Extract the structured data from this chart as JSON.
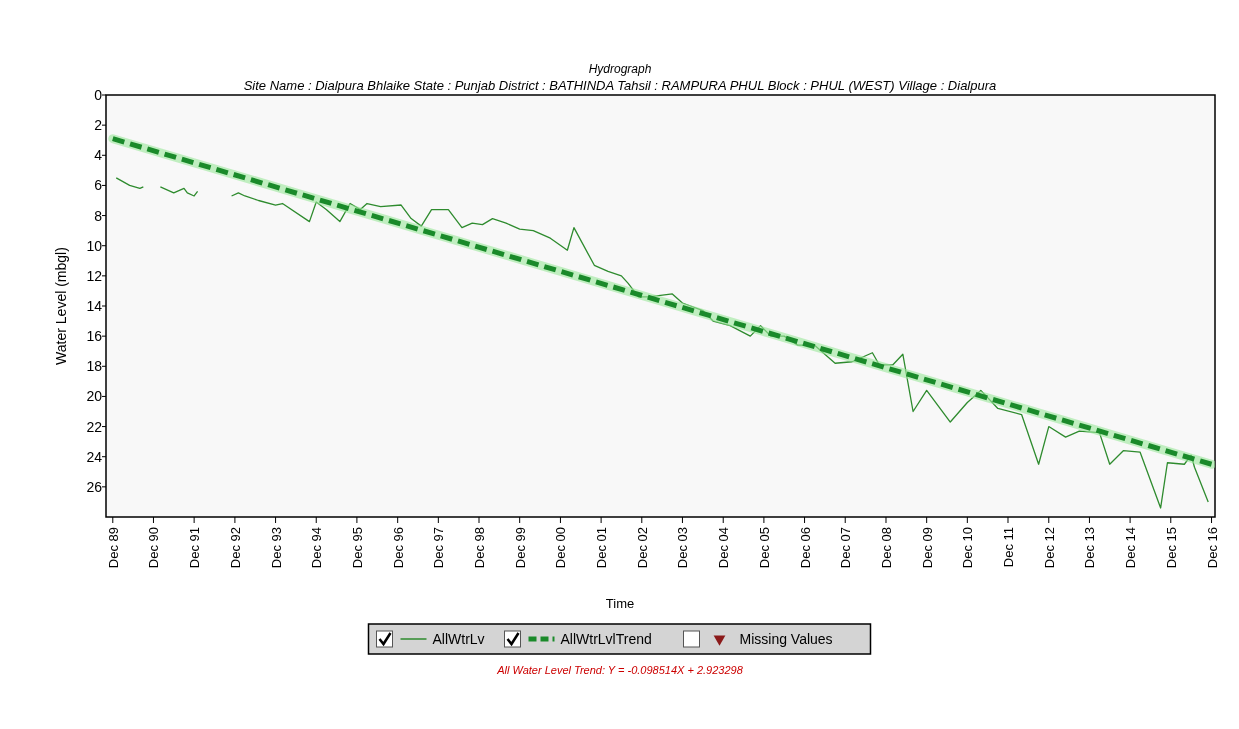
{
  "chart_data": {
    "type": "line",
    "title": "Hydrograph",
    "subtitle": "Site Name : Dialpura Bhlaike  State : Punjab District : BATHINDA  Tahsil : RAMPURA PHUL  Block : PHUL (WEST)  Village : Dialpura",
    "xlabel": "Time",
    "ylabel": "Water Level (mbgl)",
    "annotations": [
      "All Water Level Trend: Y = -0.098514X + 2.923298"
    ],
    "xlim": [
      "1989-10",
      "2017-01"
    ],
    "xticks": [
      {
        "value": "1989-12",
        "label": "Dec 89"
      },
      {
        "value": "1990-12",
        "label": "Dec 90"
      },
      {
        "value": "1991-12",
        "label": "Dec 91"
      },
      {
        "value": "1992-12",
        "label": "Dec 92"
      },
      {
        "value": "1993-12",
        "label": "Dec 93"
      },
      {
        "value": "1994-12",
        "label": "Dec 94"
      },
      {
        "value": "1995-12",
        "label": "Dec 95"
      },
      {
        "value": "1996-12",
        "label": "Dec 96"
      },
      {
        "value": "1997-12",
        "label": "Dec 97"
      },
      {
        "value": "1998-12",
        "label": "Dec 98"
      },
      {
        "value": "1999-12",
        "label": "Dec 99"
      },
      {
        "value": "2000-12",
        "label": "Dec 00"
      },
      {
        "value": "2001-12",
        "label": "Dec 01"
      },
      {
        "value": "2002-12",
        "label": "Dec 02"
      },
      {
        "value": "2003-12",
        "label": "Dec 03"
      },
      {
        "value": "2004-12",
        "label": "Dec 04"
      },
      {
        "value": "2005-12",
        "label": "Dec 05"
      },
      {
        "value": "2006-12",
        "label": "Dec 06"
      },
      {
        "value": "2007-12",
        "label": "Dec 07"
      },
      {
        "value": "2008-12",
        "label": "Dec 08"
      },
      {
        "value": "2009-12",
        "label": "Dec 09"
      },
      {
        "value": "2010-12",
        "label": "Dec 10"
      },
      {
        "value": "2011-12",
        "label": "Dec 11"
      },
      {
        "value": "2012-12",
        "label": "Dec 12"
      },
      {
        "value": "2013-12",
        "label": "Dec 13"
      },
      {
        "value": "2014-12",
        "label": "Dec 14"
      },
      {
        "value": "2015-12",
        "label": "Dec 15"
      },
      {
        "value": "2016-12",
        "label": "Dec 16"
      }
    ],
    "ylim": [
      28,
      0
    ],
    "yticks": [
      0,
      2,
      4,
      6,
      8,
      10,
      12,
      14,
      16,
      18,
      20,
      22,
      24,
      26
    ],
    "grid": false,
    "legend": "bottom",
    "series": [
      {
        "name": "AllWtrLv",
        "color": "#2e8b2e",
        "line_style": "solid",
        "x": [
          "1990-01",
          "1990-05",
          "1990-08",
          "1990-09",
          "1990-12",
          "1991-02",
          "1991-06",
          "1991-09",
          "1991-10",
          "1991-12",
          "1992-01",
          "1992-06",
          "1992-11",
          "1993-01",
          "1993-03",
          "1993-07",
          "1993-12",
          "1994-02",
          "1994-10",
          "1994-12",
          "1995-03",
          "1995-07",
          "1995-10",
          "1996-01",
          "1996-03",
          "1996-07",
          "1997-01",
          "1997-04",
          "1997-07",
          "1997-10",
          "1998-03",
          "1998-07",
          "1998-10",
          "1999-01",
          "1999-04",
          "1999-08",
          "1999-12",
          "2000-04",
          "2000-09",
          "2001-02",
          "2001-04",
          "2001-10",
          "2002-02",
          "2002-06",
          "2002-08",
          "2002-11",
          "2003-02",
          "2003-09",
          "2003-12",
          "2004-06",
          "2004-09",
          "2005-02",
          "2005-08",
          "2005-11",
          "2006-02",
          "2006-06",
          "2006-10",
          "2007-03",
          "2007-09",
          "2008-02",
          "2008-08",
          "2008-10",
          "2009-02",
          "2009-05",
          "2009-08",
          "2009-12",
          "2010-07",
          "2010-12",
          "2011-04",
          "2011-09",
          "2012-04",
          "2012-09",
          "2012-12",
          "2013-05",
          "2013-09",
          "2014-03",
          "2014-06",
          "2014-10",
          "2015-03",
          "2015-09",
          "2015-11",
          "2016-04",
          "2016-06",
          "2016-07",
          "2016-11"
        ],
        "values": [
          5.5,
          6.0,
          6.2,
          6.1,
          null,
          6.1,
          6.5,
          6.2,
          6.5,
          6.7,
          6.4,
          null,
          6.7,
          6.5,
          6.7,
          7.0,
          7.3,
          7.2,
          8.4,
          7.1,
          7.6,
          8.4,
          7.2,
          7.6,
          7.2,
          7.4,
          7.3,
          8.2,
          8.7,
          7.6,
          7.6,
          8.8,
          8.5,
          8.6,
          8.2,
          8.5,
          8.9,
          9.0,
          9.5,
          10.3,
          8.8,
          11.3,
          11.7,
          12.0,
          12.5,
          13.4,
          13.4,
          13.2,
          13.8,
          14.3,
          15.0,
          15.3,
          16.0,
          15.3,
          16.0,
          16.0,
          16.6,
          16.6,
          17.8,
          17.7,
          17.1,
          17.9,
          17.9,
          17.2,
          21.0,
          19.6,
          21.7,
          20.4,
          19.6,
          20.8,
          21.2,
          24.5,
          22.0,
          22.7,
          22.3,
          22.4,
          24.5,
          23.6,
          23.7,
          27.4,
          24.4,
          24.5,
          23.9,
          24.7,
          27.0
        ]
      },
      {
        "name": "AllWtrLvlTrend",
        "color": "#1a8a2a",
        "line_style": "dashed",
        "x": [
          "1989-12",
          "2016-12"
        ],
        "values": [
          2.9,
          24.5
        ]
      },
      {
        "name": "Missing Values",
        "type": "scatter",
        "color": "#8b1a1a",
        "marker": "triangle"
      }
    ]
  }
}
